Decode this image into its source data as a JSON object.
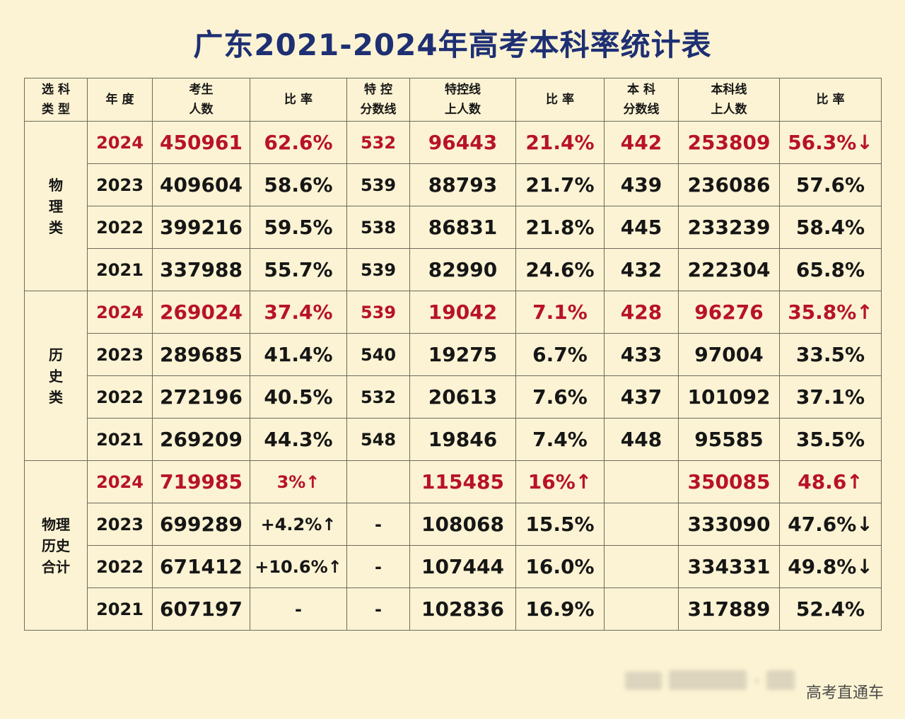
{
  "title": "广东2021-2024年高考本科率统计表",
  "headers": [
    [
      "选 科",
      "类 型"
    ],
    [
      "年 度"
    ],
    [
      "考生",
      "人数"
    ],
    [
      "比 率"
    ],
    [
      "特 控",
      "分数线"
    ],
    [
      "特控线",
      "上人数"
    ],
    [
      "比 率"
    ],
    [
      "本 科",
      "分数线"
    ],
    [
      "本科线",
      "上人数"
    ],
    [
      "比 率"
    ]
  ],
  "groups": [
    {
      "label": [
        "物",
        "理",
        "类"
      ],
      "rows": [
        {
          "year": "2024",
          "count": "450961",
          "rate": "62.6%",
          "tk_line": "532",
          "tk_count": "96443",
          "tk_rate": "21.4%",
          "bk_line": "442",
          "bk_count": "253809",
          "bk_rate": "56.3%↓",
          "highlight": true
        },
        {
          "year": "2023",
          "count": "409604",
          "rate": "58.6%",
          "tk_line": "539",
          "tk_count": "88793",
          "tk_rate": "21.7%",
          "bk_line": "439",
          "bk_count": "236086",
          "bk_rate": "57.6%",
          "highlight": false
        },
        {
          "year": "2022",
          "count": "399216",
          "rate": "59.5%",
          "tk_line": "538",
          "tk_count": "86831",
          "tk_rate": "21.8%",
          "bk_line": "445",
          "bk_count": "233239",
          "bk_rate": "58.4%",
          "highlight": false
        },
        {
          "year": "2021",
          "count": "337988",
          "rate": "55.7%",
          "tk_line": "539",
          "tk_count": "82990",
          "tk_rate": "24.6%",
          "bk_line": "432",
          "bk_count": "222304",
          "bk_rate": "65.8%",
          "highlight": false
        }
      ]
    },
    {
      "label": [
        "历",
        "史",
        "类"
      ],
      "rows": [
        {
          "year": "2024",
          "count": "269024",
          "rate": "37.4%",
          "tk_line": "539",
          "tk_count": "19042",
          "tk_rate": "7.1%",
          "bk_line": "428",
          "bk_count": "96276",
          "bk_rate": "35.8%↑",
          "highlight": true
        },
        {
          "year": "2023",
          "count": "289685",
          "rate": "41.4%",
          "tk_line": "540",
          "tk_count": "19275",
          "tk_rate": "6.7%",
          "bk_line": "433",
          "bk_count": "97004",
          "bk_rate": "33.5%",
          "highlight": false
        },
        {
          "year": "2022",
          "count": "272196",
          "rate": "40.5%",
          "tk_line": "532",
          "tk_count": "20613",
          "tk_rate": "7.6%",
          "bk_line": "437",
          "bk_count": "101092",
          "bk_rate": "37.1%",
          "highlight": false
        },
        {
          "year": "2021",
          "count": "269209",
          "rate": "44.3%",
          "tk_line": "548",
          "tk_count": "19846",
          "tk_rate": "7.4%",
          "bk_line": "448",
          "bk_count": "95585",
          "bk_rate": "35.5%",
          "highlight": false
        }
      ]
    },
    {
      "label": [
        "物理",
        "历史",
        "合计"
      ],
      "rows": [
        {
          "year": "2024",
          "count": "719985",
          "rate": "3%↑",
          "tk_line": "",
          "tk_count": "115485",
          "tk_rate": "16%↑",
          "bk_line": "",
          "bk_count": "350085",
          "bk_rate": "48.6↑",
          "highlight": true
        },
        {
          "year": "2023",
          "count": "699289",
          "rate": "+4.2%↑",
          "tk_line": "-",
          "tk_count": "108068",
          "tk_rate": "15.5%",
          "bk_line": "",
          "bk_count": "333090",
          "bk_rate": "47.6%↓",
          "highlight": false
        },
        {
          "year": "2022",
          "count": "671412",
          "rate": "+10.6%↑",
          "tk_line": "-",
          "tk_count": "107444",
          "tk_rate": "16.0%",
          "bk_line": "",
          "bk_count": "334331",
          "bk_rate": "49.8%↓",
          "highlight": false
        },
        {
          "year": "2021",
          "count": "607197",
          "rate": "-",
          "tk_line": "-",
          "tk_count": "102836",
          "tk_rate": "16.9%",
          "bk_line": "",
          "bk_count": "317889",
          "bk_rate": "52.4%",
          "highlight": false
        }
      ]
    }
  ],
  "brand": "高考直通车"
}
